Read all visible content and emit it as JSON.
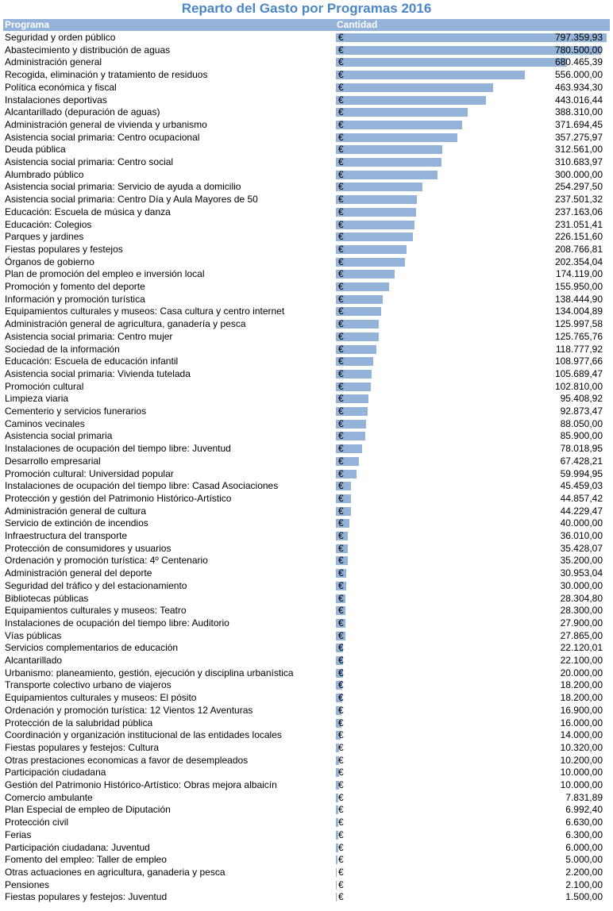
{
  "title": "Reparto del Gasto por Programas 2016",
  "header": {
    "programa": "Programa",
    "cantidad": "Cantidad"
  },
  "currency_symbol": "€",
  "colors": {
    "bar": "#93b3d8",
    "header_bg": "#93b3d8",
    "title": "#4a86c8"
  },
  "chart_data": {
    "type": "bar",
    "orientation": "horizontal",
    "title": "Reparto del Gasto por Programas 2016",
    "columns": [
      "Programa",
      "Cantidad"
    ],
    "rows": [
      {
        "label": "Seguridad y orden público",
        "display": "797.359,93",
        "value": 797359.93
      },
      {
        "label": "Abastecimiento y distribución de aguas",
        "display": "780.500,00",
        "value": 780500.0
      },
      {
        "label": "Administración general",
        "display": "680.465,39",
        "value": 680465.39
      },
      {
        "label": "Recogida, eliminación y tratamiento de residuos",
        "display": "556.000,00",
        "value": 556000.0
      },
      {
        "label": "Política económica y fiscal",
        "display": "463.934,30",
        "value": 463934.3
      },
      {
        "label": "Instalaciones deportivas",
        "display": "443.016,44",
        "value": 443016.44
      },
      {
        "label": "Alcantarillado (depuración de aguas)",
        "display": "388.310,00",
        "value": 388310.0
      },
      {
        "label": "Administración general de vivienda y urbanismo",
        "display": "371.694,45",
        "value": 371694.45
      },
      {
        "label": "Asistencia social primaria: Centro ocupacional",
        "display": "357.275,97",
        "value": 357275.97
      },
      {
        "label": "Deuda pública",
        "display": "312.561,00",
        "value": 312561.0
      },
      {
        "label": "Asistencia social primaria: Centro social",
        "display": "310.683,97",
        "value": 310683.97
      },
      {
        "label": "Alumbrado público",
        "display": "300.000,00",
        "value": 300000.0
      },
      {
        "label": "Asistencia social primaria: Servicio de ayuda a domicilio",
        "display": "254.297,50",
        "value": 254297.5
      },
      {
        "label": "Asistencia social primaria: Centro Día y Aula Mayores de 50",
        "display": "237.501,32",
        "value": 237501.32
      },
      {
        "label": "Educación: Escuela de música y danza",
        "display": "237.163,06",
        "value": 237163.06
      },
      {
        "label": "Educación: Colegios",
        "display": "231.051,41",
        "value": 231051.41
      },
      {
        "label": "Parques y jardines",
        "display": "226.151,60",
        "value": 226151.6
      },
      {
        "label": "Fiestas populares y festejos",
        "display": "208.766,81",
        "value": 208766.81
      },
      {
        "label": "Órganos de gobierno",
        "display": "202.354,04",
        "value": 202354.04
      },
      {
        "label": "Plan de promoción del empleo e inversión local",
        "display": "174.119,00",
        "value": 174119.0
      },
      {
        "label": "Promoción y fomento del deporte",
        "display": "155.950,00",
        "value": 155950.0
      },
      {
        "label": "Información y promoción turística",
        "display": "138.444,90",
        "value": 138444.9
      },
      {
        "label": "Equipamientos culturales y museos: Casa cultura y centro internet",
        "display": "134.004,89",
        "value": 134004.89
      },
      {
        "label": "Administración general de agricultura, ganadería y pesca",
        "display": "125.997,58",
        "value": 125997.58
      },
      {
        "label": "Asistencia social primaria: Centro mujer",
        "display": "125.765,76",
        "value": 125765.76
      },
      {
        "label": "Sociedad de la información",
        "display": "118.777,92",
        "value": 118777.92
      },
      {
        "label": "Educación: Escuela de educación infantil",
        "display": "108.977,66",
        "value": 108977.66
      },
      {
        "label": "Asistencia social primaria: Vivienda tutelada",
        "display": "105.689,47",
        "value": 105689.47
      },
      {
        "label": "Promoción cultural",
        "display": "102.810,00",
        "value": 102810.0
      },
      {
        "label": "Limpieza viaria",
        "display": "95.408,92",
        "value": 95408.92
      },
      {
        "label": "Cementerio y servicios funerarios",
        "display": "92.873,47",
        "value": 92873.47
      },
      {
        "label": "Caminos vecinales",
        "display": "88.050,00",
        "value": 88050.0
      },
      {
        "label": "Asistencia social primaria",
        "display": "85.900,00",
        "value": 85900.0
      },
      {
        "label": "Instalaciones de ocupación del tiempo libre: Juventud",
        "display": "78.018,95",
        "value": 78018.95
      },
      {
        "label": "Desarrollo empresarial",
        "display": "67.428,21",
        "value": 67428.21
      },
      {
        "label": "Promoción cultural: Universidad popular",
        "display": "59.994,95",
        "value": 59994.95
      },
      {
        "label": "Instalaciones de ocupación del tiempo libre: Casad Asociaciones",
        "display": "45.459,03",
        "value": 45459.03
      },
      {
        "label": "Protección y gestión del Patrimonio Histórico-Artístico",
        "display": "44.857,42",
        "value": 44857.42
      },
      {
        "label": "Administración general de cultura",
        "display": "44.229,47",
        "value": 44229.47
      },
      {
        "label": "Servicio de extinción de incendios",
        "display": "40.000,00",
        "value": 40000.0
      },
      {
        "label": "Infraestructura del transporte",
        "display": "36.010,00",
        "value": 36010.0
      },
      {
        "label": "Protección de consumidores y usuarios",
        "display": "35.428,07",
        "value": 35428.07
      },
      {
        "label": "Ordenación y promoción turística: 4º Centenario",
        "display": "35.200,00",
        "value": 35200.0
      },
      {
        "label": "Administración general del deporte",
        "display": "30.953,04",
        "value": 30953.04
      },
      {
        "label": "Seguridad del tráfico y del estacionamiento",
        "display": "30.000,00",
        "value": 30000.0
      },
      {
        "label": "Bibliotecas públicas",
        "display": "28.304,80",
        "value": 28304.8
      },
      {
        "label": "Equipamientos culturales y museos: Teatro",
        "display": "28.300,00",
        "value": 28300.0
      },
      {
        "label": "Instalaciones de ocupación del tiempo libre: Auditorio",
        "display": "27.900,00",
        "value": 27900.0
      },
      {
        "label": "Vías públicas",
        "display": "27.865,00",
        "value": 27865.0
      },
      {
        "label": "Servicios complementarios de educación",
        "display": "22.120,01",
        "value": 22120.01
      },
      {
        "label": "Alcantarillado",
        "display": "22.100,00",
        "value": 22100.0
      },
      {
        "label": "Urbanismo: planeamiento, gestión, ejecución y disciplina urbanística",
        "display": "20.000,00",
        "value": 20000.0
      },
      {
        "label": "Transporte colectivo urbano de viajeros",
        "display": "18.200,00",
        "value": 18200.0
      },
      {
        "label": "Equipamientos culturales y museos: El pósito",
        "display": "18.200,00",
        "value": 18200.0
      },
      {
        "label": "Ordenación y promoción turística: 12 Vientos 12 Aventuras",
        "display": "16.900,00",
        "value": 16900.0
      },
      {
        "label": "Protección de la salubridad pública",
        "display": "16.000,00",
        "value": 16000.0
      },
      {
        "label": "Coordinación y organización institucional de las entidades locales",
        "display": "14.000,00",
        "value": 14000.0
      },
      {
        "label": "Fiestas populares y festejos: Cultura",
        "display": "10.320,00",
        "value": 10320.0
      },
      {
        "label": "Otras prestaciones economicas a favor de desempleados",
        "display": "10.200,00",
        "value": 10200.0
      },
      {
        "label": "Participación ciudadana",
        "display": "10.000,00",
        "value": 10000.0
      },
      {
        "label": "Gestión del Patrimonio Histórico-Artístico: Obras mejora albaicín",
        "display": "10.000,00",
        "value": 10000.0
      },
      {
        "label": "Comercio ambulante",
        "display": "7.831,89",
        "value": 7831.89
      },
      {
        "label": "Plan Especial de empleo de Diputación",
        "display": "6.992,40",
        "value": 6992.4
      },
      {
        "label": "Protección civil",
        "display": "6.630,00",
        "value": 6630.0
      },
      {
        "label": "Ferias",
        "display": "6.300,00",
        "value": 6300.0
      },
      {
        "label": "Participación ciudadana: Juventud",
        "display": "6.000,00",
        "value": 6000.0
      },
      {
        "label": "Fomento del empleo: Taller de empleo",
        "display": "5.000,00",
        "value": 5000.0
      },
      {
        "label": "Otras actuaciones en agricultura, ganaderia y pesca",
        "display": "2.200,00",
        "value": 2200.0
      },
      {
        "label": "Pensiones",
        "display": "2.100,00",
        "value": 2100.0
      },
      {
        "label": "Fiestas populares y festejos: Juventud",
        "display": "1.500,00",
        "value": 1500.0
      }
    ],
    "xlim": [
      0,
      797359.93
    ]
  }
}
